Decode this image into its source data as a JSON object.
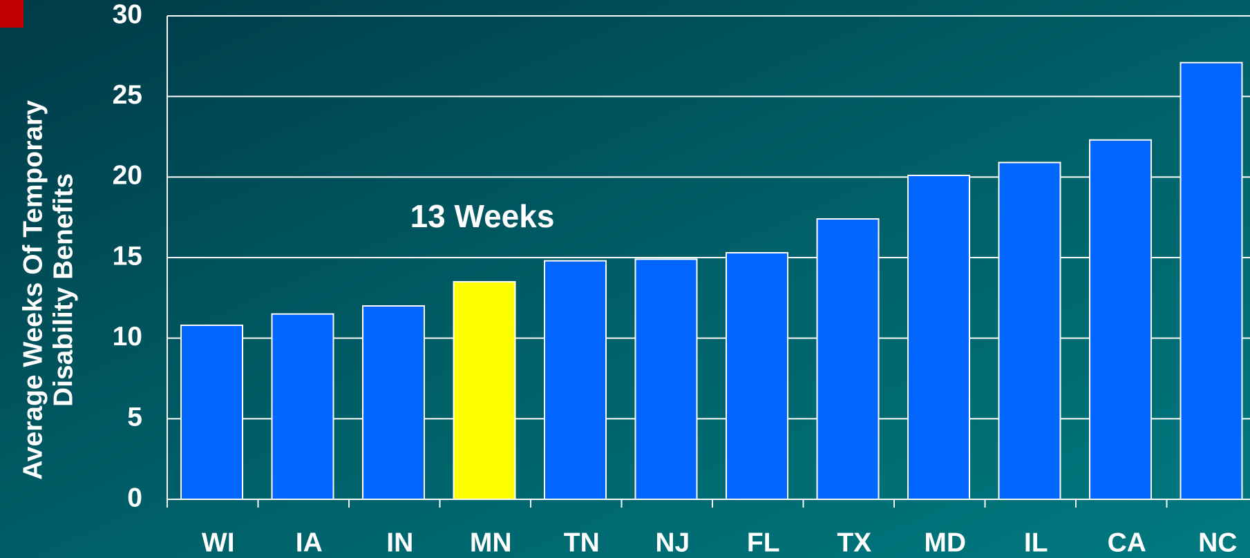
{
  "chart_data": {
    "type": "bar",
    "ylabel": [
      "Average Weeks Of Temporary",
      "Disability Benefits"
    ],
    "annotation": "13 Weeks",
    "categories": [
      "WI",
      "IA",
      "IN",
      "MN",
      "TN",
      "NJ",
      "FL",
      "TX",
      "MD",
      "IL",
      "CA",
      "NC"
    ],
    "values": [
      10.8,
      11.5,
      12,
      13.5,
      14.8,
      14.9,
      15.3,
      17.4,
      20.1,
      20.9,
      22.3,
      27.1
    ],
    "colors": [
      "#0066ff",
      "#0066ff",
      "#0066ff",
      "#ffff00",
      "#0066ff",
      "#0066ff",
      "#0066ff",
      "#0066ff",
      "#0066ff",
      "#0066ff",
      "#0066ff",
      "#0066ff"
    ],
    "ylim": [
      0,
      30
    ],
    "yticks": [
      0,
      5,
      10,
      15,
      20,
      25,
      30
    ],
    "grid": true
  }
}
